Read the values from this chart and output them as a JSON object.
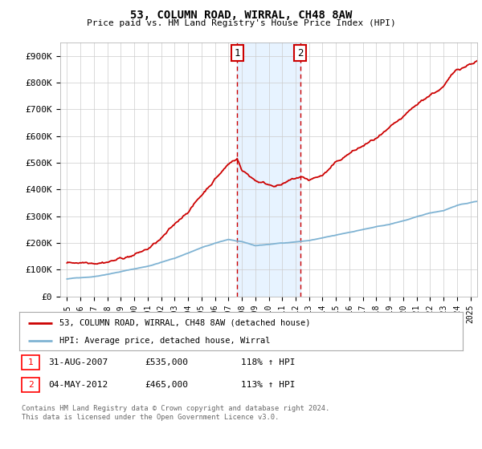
{
  "title": "53, COLUMN ROAD, WIRRAL, CH48 8AW",
  "subtitle": "Price paid vs. HM Land Registry's House Price Index (HPI)",
  "ylabel_ticks": [
    "£0",
    "£100K",
    "£200K",
    "£300K",
    "£400K",
    "£500K",
    "£600K",
    "£700K",
    "£800K",
    "£900K"
  ],
  "ytick_values": [
    0,
    100000,
    200000,
    300000,
    400000,
    500000,
    600000,
    700000,
    800000,
    900000
  ],
  "ylim": [
    0,
    950000
  ],
  "xlim_start": 1994.5,
  "xlim_end": 2025.5,
  "house_color": "#cc0000",
  "hpi_color": "#7fb3d3",
  "sale1_year": 2007.67,
  "sale1_price": 535000,
  "sale2_year": 2012.33,
  "sale2_price": 465000,
  "legend_house": "53, COLUMN ROAD, WIRRAL, CH48 8AW (detached house)",
  "legend_hpi": "HPI: Average price, detached house, Wirral",
  "table_row1_num": "1",
  "table_row1_date": "31-AUG-2007",
  "table_row1_price": "£535,000",
  "table_row1_hpi": "118% ↑ HPI",
  "table_row2_num": "2",
  "table_row2_date": "04-MAY-2012",
  "table_row2_price": "£465,000",
  "table_row2_hpi": "113% ↑ HPI",
  "footnote1": "Contains HM Land Registry data © Crown copyright and database right 2024.",
  "footnote2": "This data is licensed under the Open Government Licence v3.0.",
  "bg_color": "#ffffff",
  "plot_bg_color": "#ffffff",
  "grid_color": "#cccccc",
  "shade_color": "#ddeeff",
  "xtick_years": [
    1995,
    1996,
    1997,
    1998,
    1999,
    2000,
    2001,
    2002,
    2003,
    2004,
    2005,
    2006,
    2007,
    2008,
    2009,
    2010,
    2011,
    2012,
    2013,
    2014,
    2015,
    2016,
    2017,
    2018,
    2019,
    2020,
    2021,
    2022,
    2023,
    2024,
    2025
  ],
  "xtick_labels": [
    "1995",
    "1996",
    "1997",
    "1998",
    "1999",
    "2000",
    "2001",
    "2002",
    "2003",
    "2004",
    "2005",
    "2006",
    "2007",
    "2008",
    "2009",
    "2010",
    "2011",
    "2012",
    "2013",
    "2014",
    "2015",
    "2016",
    "2017",
    "2018",
    "2019",
    "2020",
    "2021",
    "2022",
    "2023",
    "2024",
    "2025"
  ]
}
